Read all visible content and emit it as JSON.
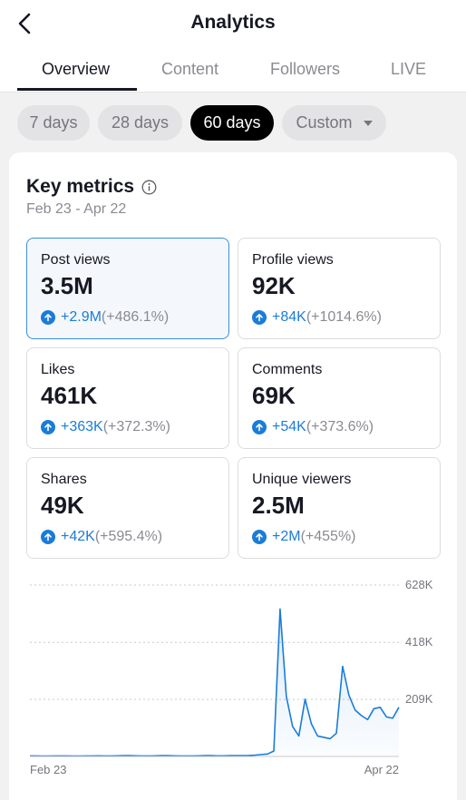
{
  "header": {
    "title": "Analytics",
    "tabs": [
      {
        "label": "Overview",
        "active": true
      },
      {
        "label": "Content",
        "active": false
      },
      {
        "label": "Followers",
        "active": false
      },
      {
        "label": "LIVE",
        "active": false
      }
    ]
  },
  "range_chips": [
    {
      "label": "7 days",
      "active": false
    },
    {
      "label": "28 days",
      "active": false
    },
    {
      "label": "60 days",
      "active": true
    },
    {
      "label": "Custom",
      "active": false,
      "dropdown": true
    }
  ],
  "key_metrics": {
    "title": "Key metrics",
    "date_range": "Feb 23 - Apr 22",
    "metrics": [
      {
        "label": "Post views",
        "value": "3.5M",
        "delta": "+2.9M",
        "pct": "(+486.1%)",
        "selected": true
      },
      {
        "label": "Profile views",
        "value": "92K",
        "delta": "+84K",
        "pct": "(+1014.6%)",
        "selected": false
      },
      {
        "label": "Likes",
        "value": "461K",
        "delta": "+363K",
        "pct": "(+372.3%)",
        "selected": false
      },
      {
        "label": "Comments",
        "value": "69K",
        "delta": "+54K",
        "pct": "(+373.6%)",
        "selected": false
      },
      {
        "label": "Shares",
        "value": "49K",
        "delta": "+42K",
        "pct": "(+595.4%)",
        "selected": false
      },
      {
        "label": "Unique viewers",
        "value": "2.5M",
        "delta": "+2M",
        "pct": "(+455%)",
        "selected": false
      }
    ]
  },
  "colors": {
    "accent": "#1b7cd8",
    "selected_border": "#3b8fd6",
    "chip_active": "#000000"
  },
  "icons": {
    "back": "chevron-left-icon",
    "info": "info-circle-icon",
    "up": "arrow-up-circle-icon"
  },
  "chart_data": {
    "type": "area",
    "series_name": "Post views",
    "x_start_label": "Feb 23",
    "x_end_label": "Apr 22",
    "y_ticks": [
      {
        "value": 209000,
        "label": "209K"
      },
      {
        "value": 418000,
        "label": "418K"
      },
      {
        "value": 628000,
        "label": "628K"
      }
    ],
    "ylim": [
      0,
      628000
    ],
    "grid": true,
    "values": [
      2000,
      2000,
      1500,
      1500,
      1800,
      1800,
      2000,
      1500,
      1500,
      2000,
      2000,
      2500,
      2000,
      2000,
      2500,
      3000,
      3000,
      2500,
      2000,
      2000,
      2500,
      3000,
      3000,
      2500,
      2000,
      2000,
      2000,
      2500,
      3000,
      3000,
      2500,
      2500,
      3000,
      3000,
      3000,
      3500,
      5000,
      7000,
      9000,
      20000,
      540000,
      220000,
      110000,
      75000,
      210000,
      120000,
      75000,
      70000,
      65000,
      85000,
      330000,
      225000,
      170000,
      150000,
      135000,
      175000,
      180000,
      145000,
      140000,
      180000
    ]
  }
}
